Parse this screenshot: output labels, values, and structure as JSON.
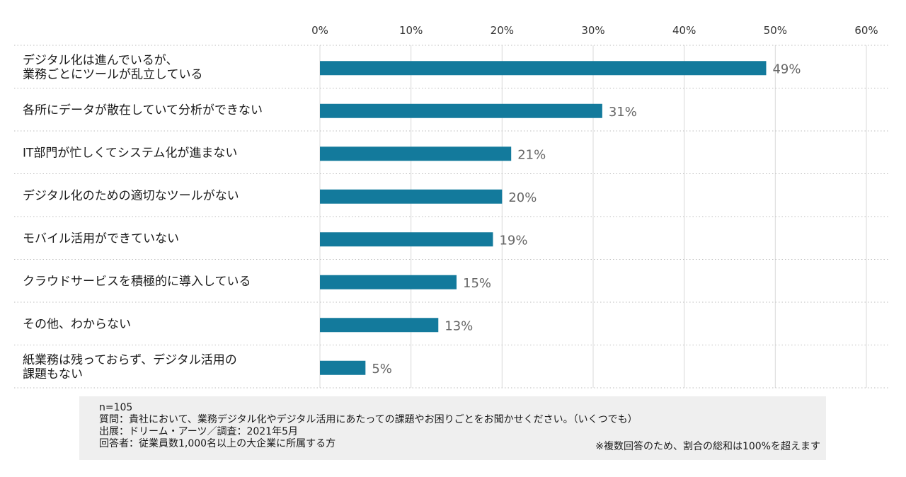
{
  "chart_data": {
    "type": "bar",
    "orientation": "horizontal",
    "categories": [
      [
        "デジタル化は進んでいるが、",
        "業務ごとにツールが乱立している"
      ],
      [
        "各所にデータが散在していて分析ができない"
      ],
      [
        "IT部門が忙しくてシステム化が進まない"
      ],
      [
        "デジタル化のための適切なツールがない"
      ],
      [
        "モバイル活用ができていない"
      ],
      [
        "クラウドサービスを積極的に導入している"
      ],
      [
        "その他、わからない"
      ],
      [
        "紙業務は残っておらず、デジタル活用の",
        "課題もない"
      ]
    ],
    "values": [
      49,
      31,
      21,
      20,
      19,
      15,
      13,
      5
    ],
    "value_labels": [
      "49%",
      "31%",
      "21%",
      "20%",
      "19%",
      "15%",
      "13%",
      "5%"
    ],
    "xlim": [
      0,
      60
    ],
    "ticks": [
      0,
      10,
      20,
      30,
      40,
      50,
      60
    ],
    "tick_labels": [
      "0%",
      "10%",
      "20%",
      "30%",
      "40%",
      "50%",
      "60%"
    ],
    "bar_color": "#137a9c",
    "grid": true,
    "legend": "none"
  },
  "notes": {
    "n": "n=105",
    "question": "質問：貴社において、業務デジタル化やデジタル活用にあたっての課題やお困りごとをお聞かせください。（いくつでも）",
    "source": "出展：ドリーム・アーツ／調査：2021年5月",
    "respondents": "回答者：従業員数1,000名以上の大企業に所属する方",
    "remark": "※複数回答のため、割合の総和は100%を超えます"
  }
}
